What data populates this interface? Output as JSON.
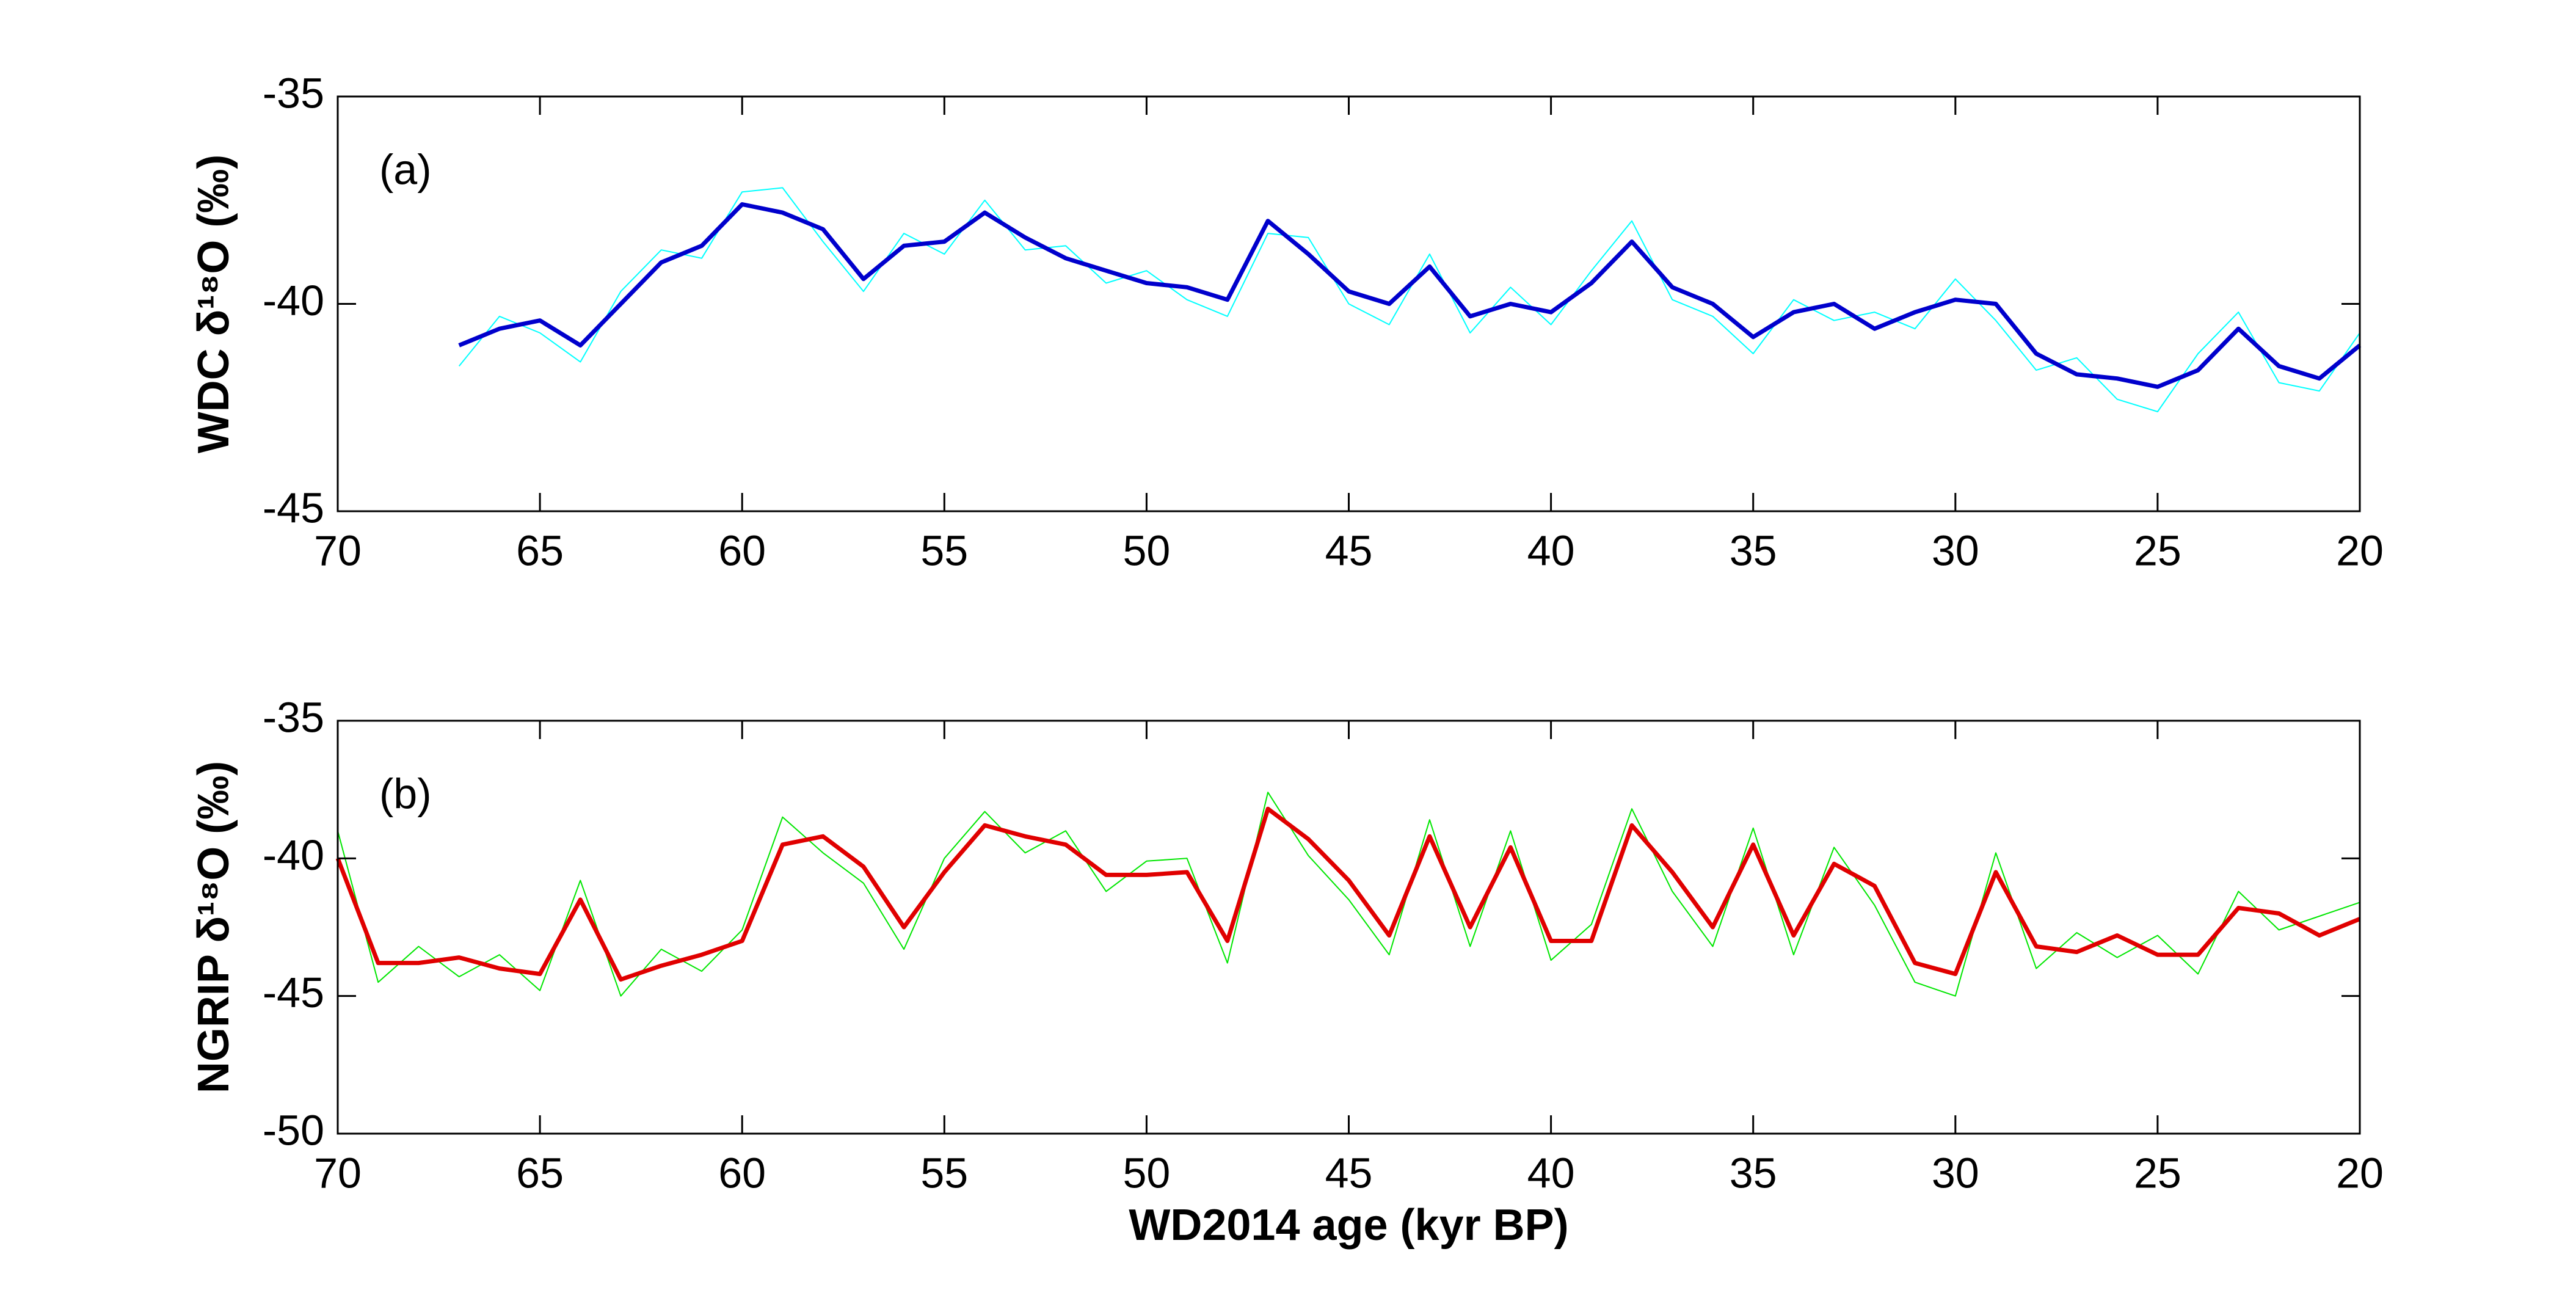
{
  "chart_data": [
    {
      "type": "line",
      "annotation": "(a)",
      "ylabel": "WDC δ¹⁸O (‰)",
      "ylabel_color": "#0000cc",
      "x": [
        70,
        69,
        68,
        67,
        66,
        65,
        64,
        63,
        62,
        61,
        60,
        59,
        58,
        57,
        56,
        55,
        54,
        53,
        52,
        51,
        50,
        49,
        48,
        47,
        46,
        45,
        44,
        43,
        42,
        41,
        40,
        39,
        38,
        37,
        36,
        35,
        34,
        33,
        32,
        31,
        30,
        29,
        28,
        27,
        26,
        25,
        24,
        23,
        22,
        21,
        20
      ],
      "xlim": [
        70,
        20
      ],
      "xticks": [
        70,
        65,
        60,
        55,
        50,
        45,
        40,
        35,
        30,
        25,
        20
      ],
      "ylim": [
        -45,
        -35
      ],
      "yticks": [
        -45,
        -40,
        -35
      ],
      "series": [
        {
          "color": "#00ffff",
          "width": 2,
          "values": [
            null,
            null,
            null,
            -41.5,
            -40.3,
            -40.7,
            -41.4,
            -39.7,
            -38.7,
            -38.9,
            -37.3,
            -37.2,
            -38.5,
            -39.7,
            -38.3,
            -38.8,
            -37.5,
            -38.7,
            -38.6,
            -39.5,
            -39.2,
            -39.9,
            -40.3,
            -38.3,
            -38.4,
            -40.0,
            -40.5,
            -38.8,
            -40.7,
            -39.6,
            -40.5,
            -39.2,
            -38.0,
            -39.9,
            -40.3,
            -41.2,
            -39.9,
            -40.4,
            -40.2,
            -40.6,
            -39.4,
            -40.4,
            -41.6,
            -41.3,
            -42.3,
            -42.6,
            -41.2,
            -40.2,
            -41.9,
            -42.1,
            -40.7
          ]
        },
        {
          "color": "#0000cc",
          "width": 7,
          "values": [
            null,
            null,
            null,
            -41.0,
            -40.6,
            -40.4,
            -41.0,
            -40.0,
            -39.0,
            -38.6,
            -37.6,
            -37.8,
            -38.2,
            -39.4,
            -38.6,
            -38.5,
            -37.8,
            -38.4,
            -38.9,
            -39.2,
            -39.5,
            -39.6,
            -39.9,
            -38.0,
            -38.8,
            -39.7,
            -40.0,
            -39.1,
            -40.3,
            -40.0,
            -40.2,
            -39.5,
            -38.5,
            -39.6,
            -40.0,
            -40.8,
            -40.2,
            -40.0,
            -40.6,
            -40.2,
            -39.9,
            -40.0,
            -41.2,
            -41.7,
            -41.8,
            -42.0,
            -41.6,
            -40.6,
            -41.5,
            -41.8,
            -41.0
          ]
        }
      ]
    },
    {
      "type": "line",
      "annotation": "(b)",
      "ylabel": "NGRIP δ¹⁸O (‰)",
      "ylabel_color": "#e00000",
      "xlabel": "WD2014 age (kyr BP)",
      "x": [
        70,
        69,
        68,
        67,
        66,
        65,
        64,
        63,
        62,
        61,
        60,
        59,
        58,
        57,
        56,
        55,
        54,
        53,
        52,
        51,
        50,
        49,
        48,
        47,
        46,
        45,
        44,
        43,
        42,
        41,
        40,
        39,
        38,
        37,
        36,
        35,
        34,
        33,
        32,
        31,
        30,
        29,
        28,
        27,
        26,
        25,
        24,
        23,
        22,
        21,
        20
      ],
      "xlim": [
        70,
        20
      ],
      "xticks": [
        70,
        65,
        60,
        55,
        50,
        45,
        40,
        35,
        30,
        25,
        20
      ],
      "ylim": [
        -50,
        -35
      ],
      "yticks": [
        -50,
        -45,
        -40,
        -35
      ],
      "series": [
        {
          "color": "#00e600",
          "width": 2,
          "values": [
            -39.0,
            -44.5,
            -43.2,
            -44.3,
            -43.5,
            -44.8,
            -40.8,
            -45.0,
            -43.3,
            -44.1,
            -42.6,
            -38.5,
            -39.8,
            -40.9,
            -43.3,
            -40.0,
            -38.3,
            -39.8,
            -39.0,
            -41.2,
            -40.1,
            -40.0,
            -43.8,
            -37.6,
            -39.9,
            -41.5,
            -43.5,
            -38.6,
            -43.2,
            -39.0,
            -43.7,
            -42.4,
            -38.2,
            -41.2,
            -43.2,
            -38.9,
            -43.5,
            -39.6,
            -41.7,
            -44.5,
            -45.0,
            -39.8,
            -44.0,
            -42.7,
            -43.6,
            -42.8,
            -44.2,
            -41.2,
            -42.6,
            -42.1,
            -41.6
          ]
        },
        {
          "color": "#e00000",
          "width": 7,
          "values": [
            -40.0,
            -43.8,
            -43.8,
            -43.6,
            -44.0,
            -44.2,
            -41.5,
            -44.4,
            -43.9,
            -43.5,
            -43.0,
            -39.5,
            -39.2,
            -40.3,
            -42.5,
            -40.5,
            -38.8,
            -39.2,
            -39.5,
            -40.6,
            -40.6,
            -40.5,
            -43.0,
            -38.2,
            -39.3,
            -40.8,
            -42.8,
            -39.2,
            -42.5,
            -39.6,
            -43.0,
            -43.0,
            -38.8,
            -40.5,
            -42.5,
            -39.5,
            -42.8,
            -40.2,
            -41.0,
            -43.8,
            -44.2,
            -40.5,
            -43.2,
            -43.4,
            -42.8,
            -43.5,
            -43.5,
            -41.8,
            -42.0,
            -42.8,
            -42.2
          ]
        }
      ]
    }
  ]
}
